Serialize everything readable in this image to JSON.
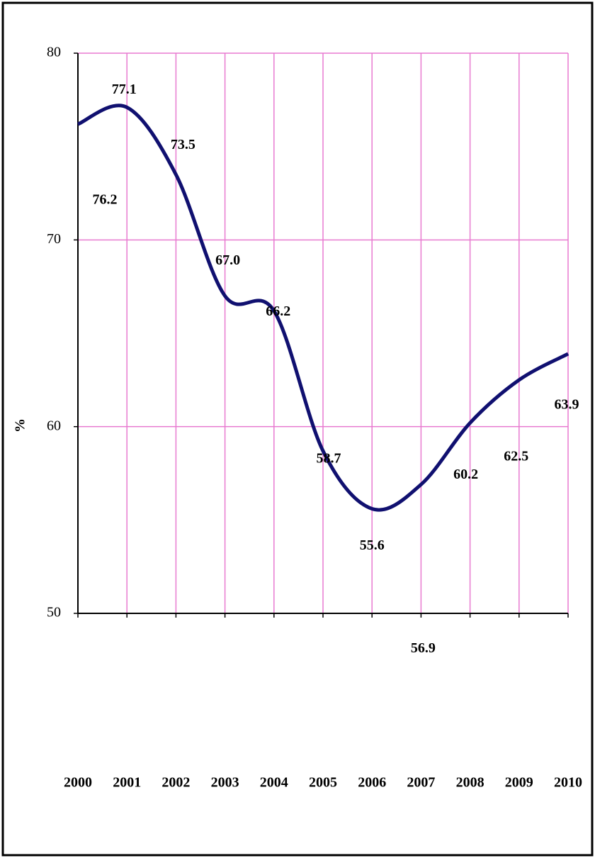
{
  "chart_data": {
    "type": "line",
    "y_label": "%",
    "categories": [
      "2000",
      "2001",
      "2002",
      "2003",
      "2004",
      "2005",
      "2006",
      "2007",
      "2008",
      "2009",
      "2010"
    ],
    "series": [
      {
        "color": "#101070",
        "values": [
          76.2,
          77.1,
          73.5,
          67.0,
          66.2,
          58.7,
          55.6,
          56.9,
          60.2,
          62.5,
          63.9
        ],
        "value_labels": [
          "76.2",
          "77.1",
          "73.5",
          "67.0",
          "66.2",
          "58.7",
          "55.6",
          "56.9",
          "60.2",
          "62.5",
          "63.9"
        ]
      }
    ],
    "ylim": [
      50,
      80
    ],
    "yticks": [
      50,
      60,
      70,
      80
    ],
    "grid": true,
    "grid_color": "#e87ad0"
  }
}
